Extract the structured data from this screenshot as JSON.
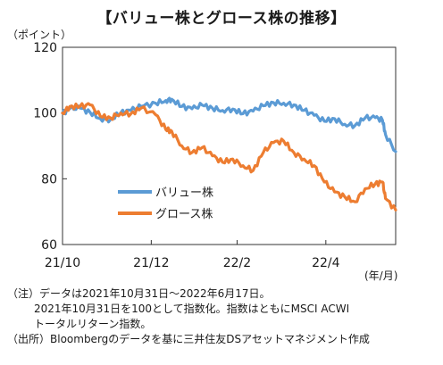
{
  "title": "【バリュー株とグロース株の推移】",
  "y_unit": "（ポイント）",
  "x_unit": "(年/月)",
  "notes": {
    "line1": "（注）データは2021年10月31日～2022年6月17日。",
    "line2": "2021年10月31日を100として指数化。指数はともにMSCI ACWI",
    "line3": "トータルリターン指数。",
    "line4": "（出所）Bloombergのデータを基に三井住友DSアセットマネジメント作成"
  },
  "chart_data": {
    "type": "line",
    "title": "【バリュー株とグロース株の推移】",
    "ylabel": "（ポイント）",
    "xlabel": "(年/月)",
    "ylim": [
      60,
      120
    ],
    "yticks": [
      60,
      80,
      100,
      120
    ],
    "xlim": [
      "2021-10-31",
      "2022-06-17"
    ],
    "xticks": [
      {
        "date": "2021-10-31",
        "label": "21/10"
      },
      {
        "date": "2021-12-31",
        "label": "21/12"
      },
      {
        "date": "2022-02-28",
        "label": "22/2"
      },
      {
        "date": "2022-04-30",
        "label": "22/4"
      }
    ],
    "grid": false,
    "legend_position": "lower-left",
    "series": [
      {
        "name": "バリュー株",
        "color": "#5b9bd5",
        "points": [
          [
            "2021-10-31",
            100.0
          ],
          [
            "2021-11-05",
            101.3
          ],
          [
            "2021-11-12",
            101.5
          ],
          [
            "2021-11-19",
            100.2
          ],
          [
            "2021-11-26",
            98.3
          ],
          [
            "2021-12-03",
            98.0
          ],
          [
            "2021-12-10",
            100.1
          ],
          [
            "2021-12-17",
            100.8
          ],
          [
            "2021-12-24",
            102.0
          ],
          [
            "2022-01-03",
            103.0
          ],
          [
            "2022-01-10",
            103.8
          ],
          [
            "2022-01-14",
            104.2
          ],
          [
            "2022-01-21",
            102.0
          ],
          [
            "2022-01-28",
            101.3
          ],
          [
            "2022-02-04",
            102.4
          ],
          [
            "2022-02-11",
            101.5
          ],
          [
            "2022-02-18",
            100.8
          ],
          [
            "2022-02-25",
            101.2
          ],
          [
            "2022-03-04",
            99.8
          ],
          [
            "2022-03-11",
            100.6
          ],
          [
            "2022-03-18",
            102.2
          ],
          [
            "2022-03-25",
            103.2
          ],
          [
            "2022-04-01",
            103.0
          ],
          [
            "2022-04-08",
            102.5
          ],
          [
            "2022-04-15",
            100.8
          ],
          [
            "2022-04-22",
            99.3
          ],
          [
            "2022-04-29",
            97.5
          ],
          [
            "2022-05-06",
            98.3
          ],
          [
            "2022-05-13",
            96.6
          ],
          [
            "2022-05-20",
            96.2
          ],
          [
            "2022-05-27",
            98.5
          ],
          [
            "2022-06-03",
            98.6
          ],
          [
            "2022-06-08",
            97.8
          ],
          [
            "2022-06-10",
            93.5
          ],
          [
            "2022-06-17",
            88.3
          ]
        ]
      },
      {
        "name": "グロース株",
        "color": "#ed7d31",
        "points": [
          [
            "2021-10-31",
            100.0
          ],
          [
            "2021-11-05",
            102.0
          ],
          [
            "2021-11-12",
            102.0
          ],
          [
            "2021-11-19",
            102.5
          ],
          [
            "2021-11-26",
            99.0
          ],
          [
            "2021-12-03",
            98.5
          ],
          [
            "2021-12-10",
            100.0
          ],
          [
            "2021-12-17",
            99.8
          ],
          [
            "2021-12-24",
            101.5
          ],
          [
            "2022-01-03",
            99.5
          ],
          [
            "2022-01-10",
            95.0
          ],
          [
            "2022-01-14",
            94.5
          ],
          [
            "2022-01-21",
            90.0
          ],
          [
            "2022-01-28",
            88.0
          ],
          [
            "2022-02-04",
            89.5
          ],
          [
            "2022-02-11",
            87.0
          ],
          [
            "2022-02-18",
            85.0
          ],
          [
            "2022-02-25",
            86.0
          ],
          [
            "2022-03-04",
            84.0
          ],
          [
            "2022-03-11",
            82.5
          ],
          [
            "2022-03-18",
            88.0
          ],
          [
            "2022-03-25",
            91.0
          ],
          [
            "2022-04-01",
            91.5
          ],
          [
            "2022-04-08",
            88.0
          ],
          [
            "2022-04-15",
            86.0
          ],
          [
            "2022-04-22",
            84.0
          ],
          [
            "2022-04-29",
            79.0
          ],
          [
            "2022-05-06",
            76.0
          ],
          [
            "2022-05-13",
            74.5
          ],
          [
            "2022-05-20",
            73.0
          ],
          [
            "2022-05-27",
            77.0
          ],
          [
            "2022-06-03",
            78.5
          ],
          [
            "2022-06-08",
            79.0
          ],
          [
            "2022-06-10",
            74.0
          ],
          [
            "2022-06-17",
            70.5
          ]
        ]
      }
    ]
  }
}
